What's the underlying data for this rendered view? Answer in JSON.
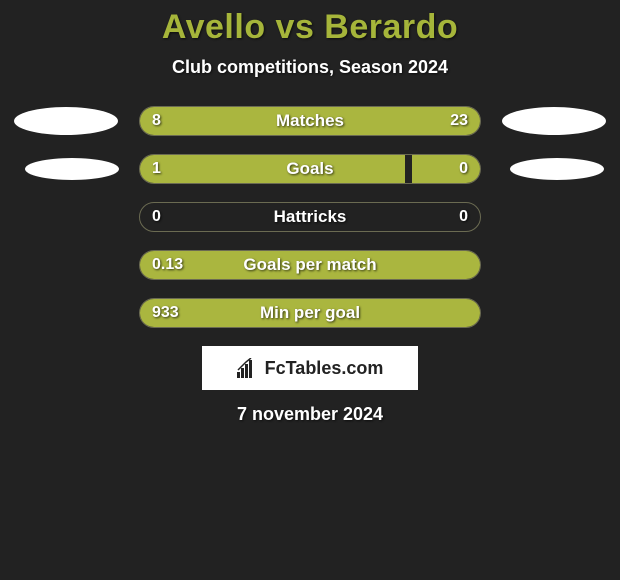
{
  "title": "Avello vs Berardo",
  "subtitle": "Club competitions, Season 2024",
  "colors": {
    "background": "#222222",
    "accent": "#a6b53a",
    "bar_left": "#aab63f",
    "bar_right": "#aab63f",
    "text": "#ffffff",
    "brand_bg": "#ffffff",
    "brand_text": "#222222"
  },
  "rows": [
    {
      "metric": "Matches",
      "left_value": "8",
      "right_value": "23",
      "left_pct": 26,
      "right_pct": 74,
      "show_logos": true,
      "logo_size": "large"
    },
    {
      "metric": "Goals",
      "left_value": "1",
      "right_value": "0",
      "left_pct": 78,
      "right_pct": 20,
      "show_logos": true,
      "logo_size": "small"
    },
    {
      "metric": "Hattricks",
      "left_value": "0",
      "right_value": "0",
      "left_pct": 0,
      "right_pct": 0,
      "show_logos": false
    },
    {
      "metric": "Goals per match",
      "left_value": "0.13",
      "right_value": "",
      "left_pct": 100,
      "right_pct": 0,
      "show_logos": false
    },
    {
      "metric": "Min per goal",
      "left_value": "933",
      "right_value": "",
      "left_pct": 100,
      "right_pct": 0,
      "show_logos": false
    }
  ],
  "brand": "FcTables.com",
  "date": "7 november 2024"
}
